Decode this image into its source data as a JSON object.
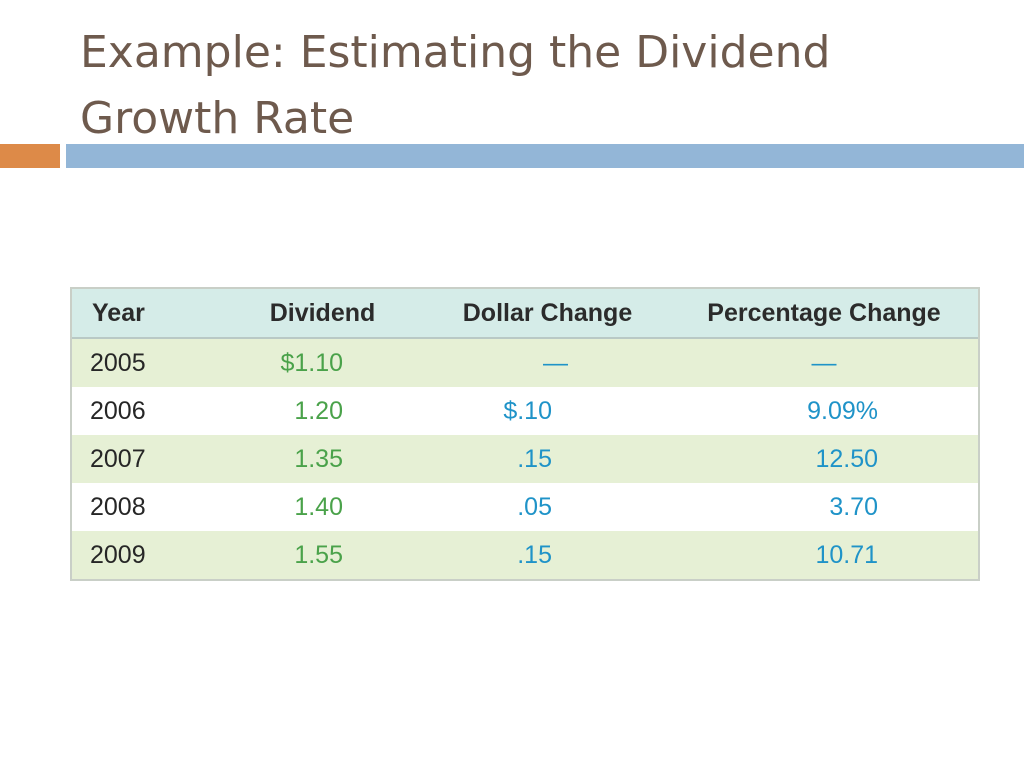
{
  "slide": {
    "title": "Example: Estimating the Dividend Growth Rate"
  },
  "table": {
    "headers": {
      "year": "Year",
      "dividend": "Dividend",
      "dollar_change": "Dollar Change",
      "percentage_change": "Percentage Change"
    },
    "rows": [
      {
        "year": "2005",
        "dividend": "$1.10",
        "dollar_change": "—",
        "percentage_change": "—"
      },
      {
        "year": "2006",
        "dividend": "1.20",
        "dollar_change": "$.10",
        "percentage_change": "9.09%"
      },
      {
        "year": "2007",
        "dividend": "1.35",
        "dollar_change": ".15",
        "percentage_change": "12.50"
      },
      {
        "year": "2008",
        "dividend": "1.40",
        "dollar_change": ".05",
        "percentage_change": "3.70"
      },
      {
        "year": "2009",
        "dividend": "1.55",
        "dollar_change": ".15",
        "percentage_change": "10.71"
      }
    ]
  },
  "colors": {
    "title": "#6e5a4d",
    "accent_orange": "#dd8a48",
    "accent_blue": "#93b6d7",
    "header_fill": "#d5ece8",
    "band_fill": "#e6f0d5",
    "dividend_text": "#4aa24a",
    "change_text": "#1f93c8"
  }
}
